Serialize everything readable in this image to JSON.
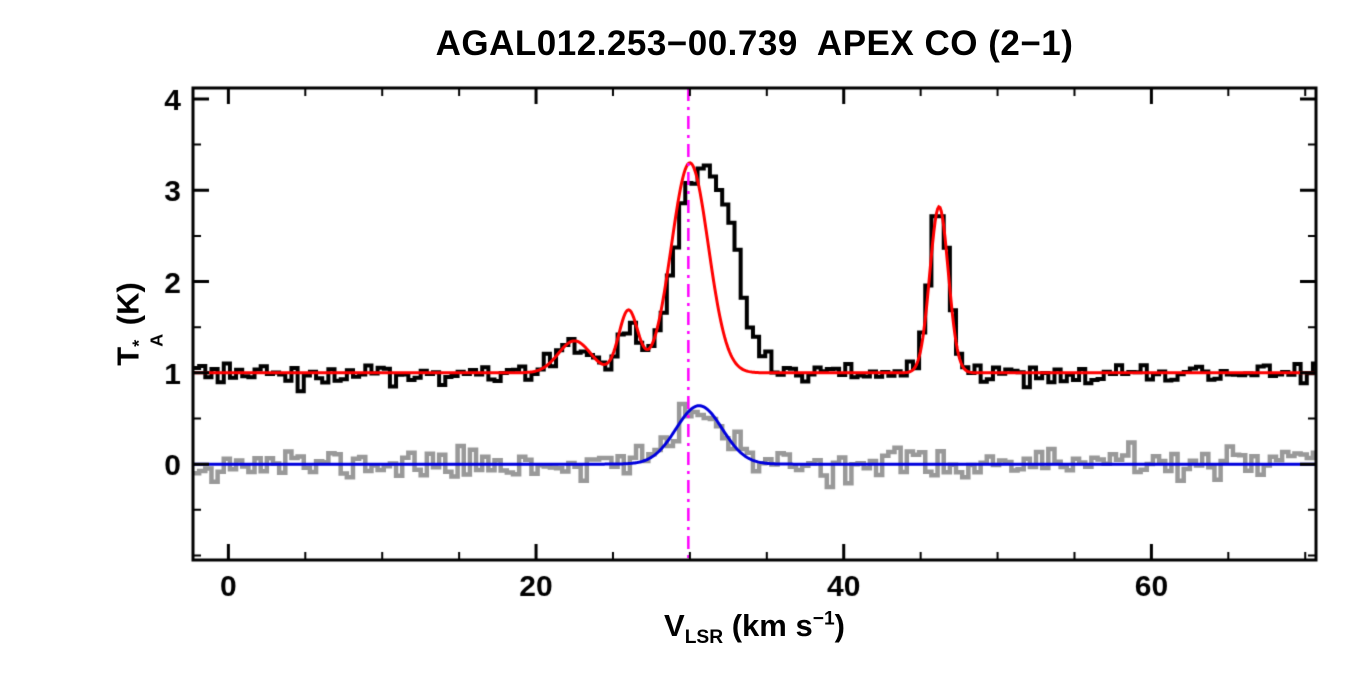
{
  "figure": {
    "background": "#ffffff"
  },
  "labels": {
    "title": "AGAL012.253−00.739  APEX CO (2−1)",
    "ylabel": {
      "base": "T",
      "sup": "*",
      "sub": "A",
      "unit": " (K)"
    },
    "xlabel": {
      "base": "V",
      "sub": "LSR",
      "unit_prefix": " (km s",
      "sup": "−1",
      "unit_suffix": ")"
    }
  },
  "chart_data": {
    "type": "line",
    "title": "AGAL012.253−00.739  APEX CO (2−1)",
    "xlabel": "V_LSR (km s^−1)",
    "ylabel": "T_A^* (K)",
    "xlim": [
      -2.3,
      70.7
    ],
    "ylim": [
      -1.05,
      4.12
    ],
    "grid": false,
    "legend": "none",
    "x_major_ticks": [
      0,
      20,
      40,
      60
    ],
    "x_minor_step": 5,
    "y_major_ticks": [
      0,
      1,
      2,
      3,
      4
    ],
    "y_minor_step": 0.5,
    "channel_width": 0.4,
    "axis_color": "#000000",
    "vline": {
      "x": 29.9,
      "color": "#ff00ff",
      "style": "dash-dot",
      "label": "systemic-velocity"
    },
    "series": [
      {
        "name": "offset-comparison-spectrum",
        "style": "histogram",
        "color": "#999999",
        "line_width": 4.5,
        "baseline": 0.0,
        "noise_sigma": 0.088,
        "noise_seed": 11,
        "gaussians": [
          {
            "center": 30.6,
            "amplitude": 0.6,
            "sigma": 1.5
          }
        ]
      },
      {
        "name": "comparison-gaussian-fit",
        "style": "smooth",
        "color": "#0000dd",
        "line_width": 3,
        "baseline": 0.0,
        "noise_sigma": 0,
        "noise_seed": 0,
        "gaussians": [
          {
            "center": 30.6,
            "amplitude": 0.64,
            "sigma": 1.5
          }
        ]
      },
      {
        "name": "co21-spectrum",
        "style": "histogram",
        "color": "#000000",
        "line_width": 4,
        "baseline": 1.0,
        "noise_sigma": 0.066,
        "noise_seed": 3,
        "gaussians": [
          {
            "center": 22.5,
            "amplitude": 0.33,
            "sigma": 1.1
          },
          {
            "center": 26.0,
            "amplitude": 0.62,
            "sigma": 0.65
          },
          {
            "center": 30.2,
            "amplitude": 2.0,
            "sigma": 1.25
          },
          {
            "center": 32.4,
            "amplitude": 1.35,
            "sigma": 1.15
          },
          {
            "center": 46.2,
            "amplitude": 1.85,
            "sigma": 0.62
          }
        ]
      },
      {
        "name": "co21-gaussian-fit",
        "style": "smooth",
        "color": "#ff0000",
        "line_width": 3,
        "baseline": 1.0,
        "noise_sigma": 0,
        "noise_seed": 0,
        "gaussians": [
          {
            "center": 22.5,
            "amplitude": 0.35,
            "sigma": 1.05
          },
          {
            "center": 26.0,
            "amplitude": 0.68,
            "sigma": 0.62
          },
          {
            "center": 30.0,
            "amplitude": 2.3,
            "sigma": 1.2
          },
          {
            "center": 46.2,
            "amplitude": 1.82,
            "sigma": 0.6
          }
        ]
      }
    ]
  }
}
